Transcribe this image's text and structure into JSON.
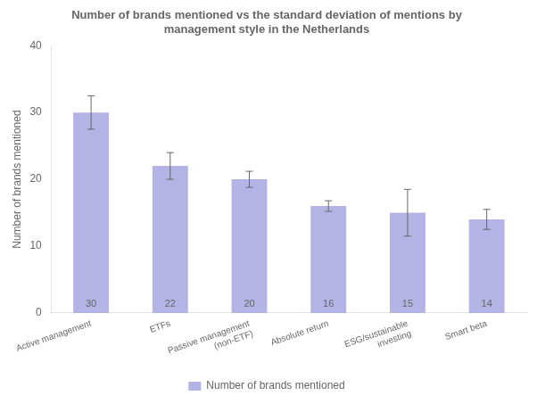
{
  "chart_data": {
    "type": "bar",
    "title": "Number of brands mentioned vs the standard deviation of mentions by\nmanagement style in the Netherlands",
    "categories": [
      "Active management",
      "ETFs",
      "Passive management\n(non-ETF)",
      "Absolute return",
      "ESG/sustainable\ninvesting",
      "Smart beta"
    ],
    "series": [
      {
        "name": "Number of brands mentioned",
        "color": "#b3b3e6",
        "values": [
          30,
          22,
          20,
          16,
          15,
          14
        ],
        "errors": [
          2.5,
          2.0,
          1.2,
          0.8,
          3.5,
          1.5
        ]
      }
    ],
    "ylabel": "Number of brands mentioned",
    "ylim": [
      0,
      40
    ],
    "yticks": [
      0,
      10,
      20,
      30,
      40
    ],
    "grid": false,
    "legend": "bottom",
    "data_labels": true
  }
}
